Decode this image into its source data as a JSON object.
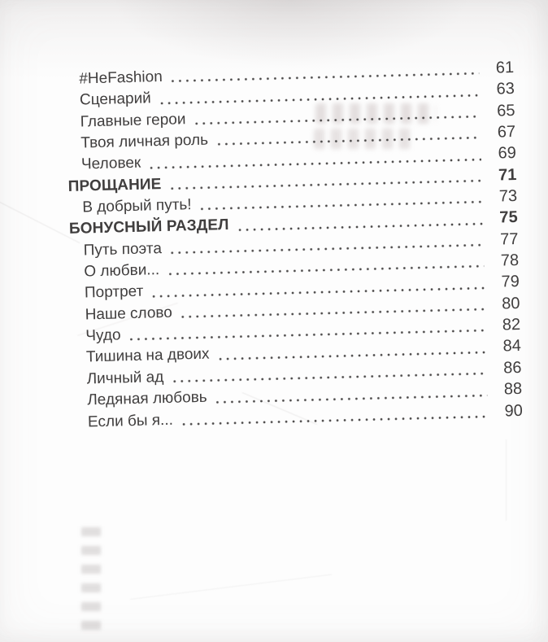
{
  "colors": {
    "ink": "#403e3e",
    "paper": "#fdfdfd",
    "dot": "#4b4949"
  },
  "toc": {
    "entries": [
      {
        "label": "#HeFashion",
        "page": "61",
        "style": "regular"
      },
      {
        "label": "Сценарий",
        "page": "63",
        "style": "regular"
      },
      {
        "label": "Главные герои",
        "page": "65",
        "style": "regular"
      },
      {
        "label": "Твоя личная роль",
        "page": "67",
        "style": "regular"
      },
      {
        "label": "Человек",
        "page": "69",
        "style": "regular"
      },
      {
        "label": "ПРОЩАНИЕ",
        "page": "71",
        "style": "section"
      },
      {
        "label": "В добрый путь!",
        "page": "73",
        "style": "regular"
      },
      {
        "label": "БОНУСНЫЙ РАЗДЕЛ",
        "page": "75",
        "style": "section"
      },
      {
        "label": "Путь поэта",
        "page": "77",
        "style": "regular"
      },
      {
        "label": "О любви...",
        "page": "78",
        "style": "regular"
      },
      {
        "label": "Портрет",
        "page": "79",
        "style": "regular"
      },
      {
        "label": "Наше слово",
        "page": "80",
        "style": "regular"
      },
      {
        "label": "Чудо",
        "page": "82",
        "style": "regular"
      },
      {
        "label": "Тишина на двоих",
        "page": "84",
        "style": "regular"
      },
      {
        "label": "Личный ад",
        "page": "86",
        "style": "regular"
      },
      {
        "label": "Ледяная любовь",
        "page": "88",
        "style": "regular"
      },
      {
        "label": "Если бы я...",
        "page": "90",
        "style": "regular"
      }
    ]
  }
}
